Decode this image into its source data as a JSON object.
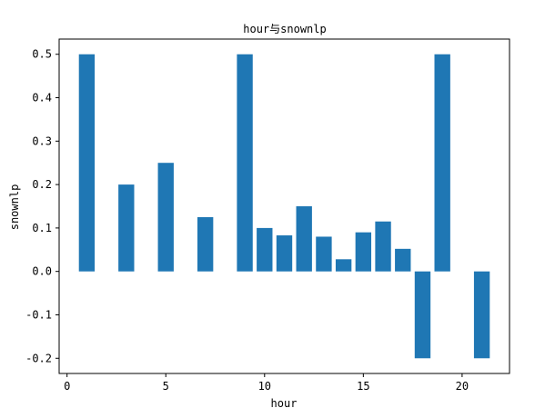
{
  "chart_data": {
    "type": "bar",
    "title": "hour与snownlp",
    "xlabel": "hour",
    "ylabel": "snownlp",
    "x": [
      1,
      3,
      5,
      7,
      9,
      10,
      11,
      12,
      13,
      14,
      15,
      16,
      17,
      18,
      19,
      21
    ],
    "values": [
      0.5,
      0.2,
      0.25,
      0.125,
      0.5,
      0.1,
      0.083,
      0.15,
      0.08,
      0.028,
      0.09,
      0.115,
      0.052,
      -0.2,
      0.5,
      -0.2
    ],
    "bar_color": "#1f77b4",
    "xlim": [
      -0.4,
      22.4
    ],
    "ylim": [
      -0.235,
      0.535
    ],
    "xticks": [
      0,
      5,
      10,
      15,
      20
    ],
    "yticks": [
      -0.2,
      -0.1,
      0.0,
      0.1,
      0.2,
      0.3,
      0.4,
      0.5
    ],
    "ytick_labels": [
      "-0.2",
      "-0.1",
      "0.0",
      "0.1",
      "0.2",
      "0.3",
      "0.4",
      "0.5"
    ],
    "grid": false,
    "legend": "none"
  }
}
